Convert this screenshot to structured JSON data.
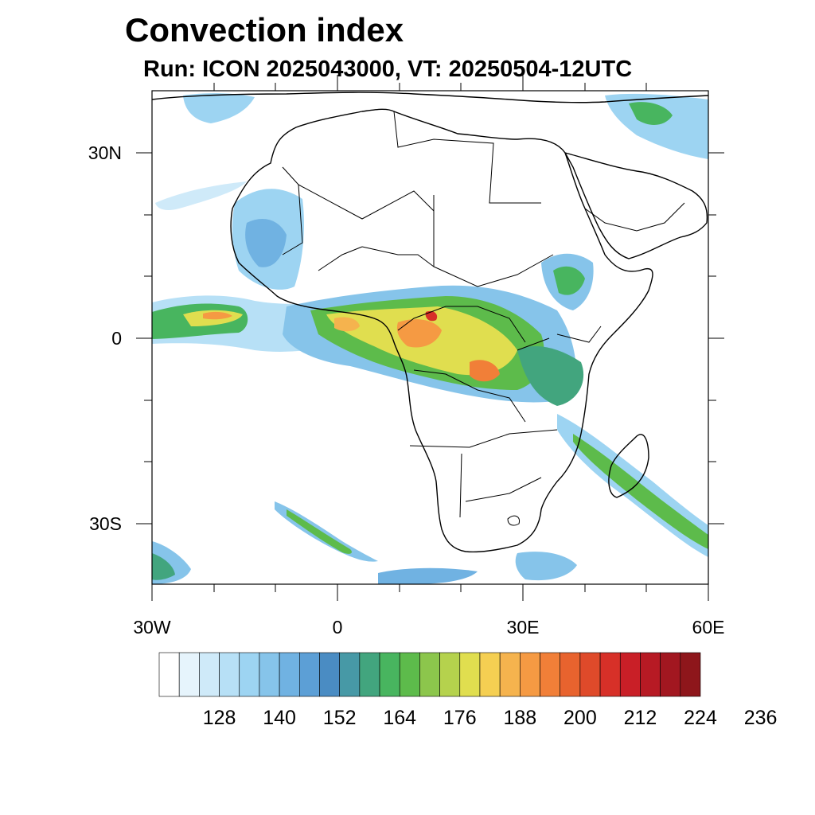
{
  "title": "Convection index",
  "subtitle": "Run: ICON 2025043000,  VT: 20250504-12UTC",
  "map": {
    "lon_range": [
      -30,
      60
    ],
    "lat_range": [
      -40,
      40
    ],
    "lat_ticks": [
      {
        "value": 30,
        "label": "30N"
      },
      {
        "value": 0,
        "label": "0"
      },
      {
        "value": -30,
        "label": "30S"
      }
    ],
    "lon_ticks": [
      {
        "value": -30,
        "label": "30W"
      },
      {
        "value": 0,
        "label": "0"
      },
      {
        "value": 30,
        "label": "30E"
      },
      {
        "value": 60,
        "label": "60E"
      }
    ]
  },
  "colorbar": {
    "colors": [
      "#ffffff",
      "#e6f4fc",
      "#cfeaf9",
      "#b7e0f6",
      "#9dd4f2",
      "#86c4ea",
      "#70b2e2",
      "#5c9fd6",
      "#4a8cc3",
      "#4799a6",
      "#42a57e",
      "#48b55f",
      "#5dbb4b",
      "#8cc64c",
      "#b5d24d",
      "#e0de4f",
      "#f5cf52",
      "#f5b34e",
      "#f59a43",
      "#f17f38",
      "#e8632e",
      "#df4a2a",
      "#d73028",
      "#c91f27",
      "#b71a24",
      "#a21720",
      "#8e161b"
    ],
    "labels": [
      "128",
      "140",
      "152",
      "164",
      "176",
      "188",
      "200",
      "212",
      "224",
      "236"
    ]
  }
}
